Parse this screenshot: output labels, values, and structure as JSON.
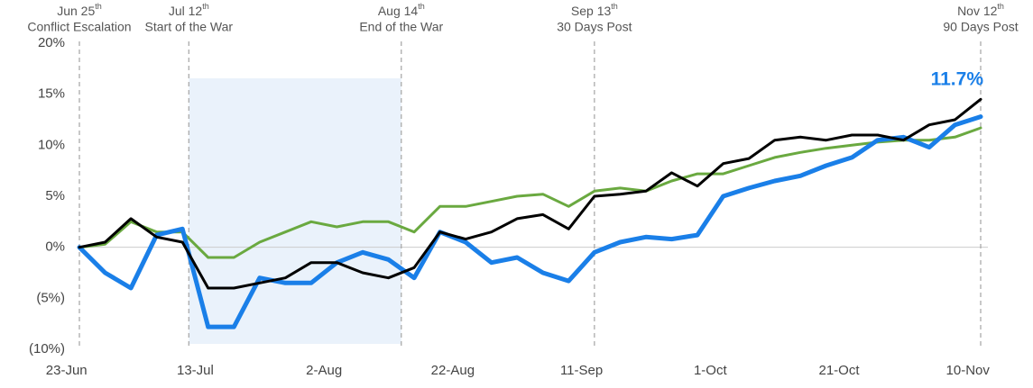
{
  "chart_data": {
    "type": "line",
    "x": [
      "25-Jun",
      "29-Jun",
      "3-Jul",
      "7-Jul",
      "11-Jul",
      "15-Jul",
      "19-Jul",
      "23-Jul",
      "27-Jul",
      "31-Jul",
      "4-Aug",
      "8-Aug",
      "12-Aug",
      "16-Aug",
      "20-Aug",
      "24-Aug",
      "28-Aug",
      "1-Sep",
      "5-Sep",
      "9-Sep",
      "13-Sep",
      "17-Sep",
      "21-Sep",
      "25-Sep",
      "29-Sep",
      "3-Oct",
      "7-Oct",
      "11-Oct",
      "15-Oct",
      "19-Oct",
      "23-Oct",
      "27-Oct",
      "31-Oct",
      "4-Nov",
      "8-Nov",
      "12-Nov"
    ],
    "series": [
      {
        "color": "#6aa940",
        "values": [
          0,
          0.3,
          2.5,
          1.5,
          1.5,
          -1,
          -1,
          0.5,
          1.5,
          2.5,
          2,
          2.5,
          2.5,
          1.5,
          4,
          4,
          4.5,
          5,
          5.2,
          4,
          5.5,
          5.8,
          5.5,
          6.5,
          7.2,
          7.2,
          8,
          8.8,
          9.3,
          9.7,
          10,
          10.3,
          10.5,
          10.5,
          10.8,
          11.7
        ]
      },
      {
        "color": "#1a7fe8",
        "values": [
          0,
          -2.5,
          -4,
          1.2,
          1.8,
          -7.8,
          -7.8,
          -3,
          -3.5,
          -3.5,
          -1.5,
          -0.5,
          -1.2,
          -3,
          1.5,
          0.5,
          -1.5,
          -1,
          -2.5,
          -3.3,
          -0.5,
          0.5,
          1,
          0.8,
          1.2,
          5,
          5.8,
          6.5,
          7,
          8,
          8.8,
          10.5,
          10.8,
          9.8,
          12,
          12.8
        ]
      },
      {
        "color": "#000000",
        "values": [
          0,
          0.5,
          2.8,
          1,
          0.5,
          -4,
          -4,
          -3.5,
          -3,
          -1.5,
          -1.5,
          -2.5,
          -3,
          -2,
          1.5,
          0.8,
          1.5,
          2.8,
          3.2,
          1.8,
          5,
          5.2,
          5.5,
          7.3,
          6,
          8.2,
          8.7,
          10.5,
          10.8,
          10.5,
          11,
          11,
          10.5,
          12,
          12.5,
          14.5
        ]
      }
    ],
    "xlim": [
      "25-Jun",
      "12-Nov"
    ],
    "xticks": [
      "23-Jun",
      "13-Jul",
      "2-Aug",
      "22-Aug",
      "11-Sep",
      "1-Oct",
      "21-Oct",
      "10-Nov"
    ],
    "ylim": [
      -10,
      20
    ],
    "yticks": [
      {
        "value": 20,
        "label": "20%"
      },
      {
        "value": 15,
        "label": "15%"
      },
      {
        "value": 10,
        "label": "10%"
      },
      {
        "value": 5,
        "label": "5%"
      },
      {
        "value": 0,
        "label": "0%"
      },
      {
        "value": -5,
        "label": "(5%)"
      },
      {
        "value": -10,
        "label": "(10%)"
      }
    ],
    "zero_line": true,
    "shade": {
      "from": "12-Jul",
      "to": "14-Aug",
      "color": "#eaf2fb"
    },
    "annotations": [
      {
        "x": "25-Jun",
        "date": "Jun 25",
        "sup": "th",
        "text": "Conflict Escalation"
      },
      {
        "x": "12-Jul",
        "date": "Jul 12",
        "sup": "th",
        "text": "Start of the War"
      },
      {
        "x": "14-Aug",
        "date": "Aug 14",
        "sup": "th",
        "text": "End of the War"
      },
      {
        "x": "13-Sep",
        "date": "Sep 13",
        "sup": "th",
        "text": "30 Days Post"
      },
      {
        "x": "12-Nov",
        "date": "Nov 12",
        "sup": "th",
        "text": "90 Days Post"
      }
    ],
    "end_label": {
      "value": 11.7,
      "label": "11.7%"
    }
  }
}
